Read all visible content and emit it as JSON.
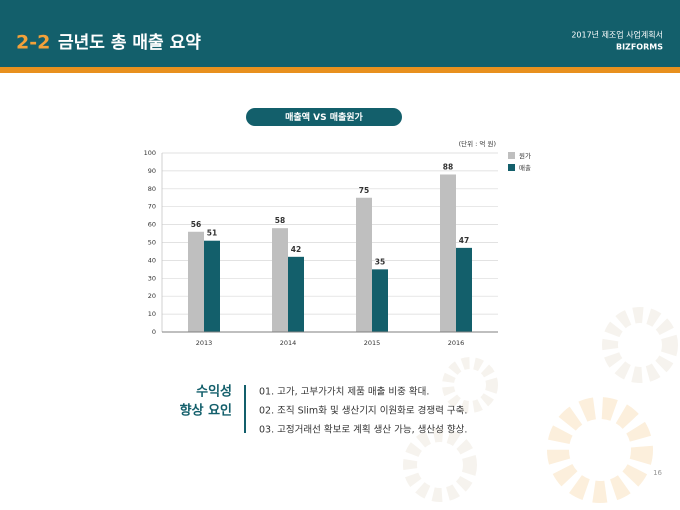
{
  "header": {
    "number": "2-2",
    "title": "금년도 총 매출 요약",
    "doc_title": "2017년 제조업 사업계획서",
    "brand": "BIZFORMS"
  },
  "chart_data": {
    "type": "bar",
    "title": "매출액 VS 매출원가",
    "unit": "(단위 : 억 원)",
    "categories": [
      "2013",
      "2014",
      "2015",
      "2016"
    ],
    "series": [
      {
        "name": "원가",
        "color": "#bfbfbf",
        "values": [
          56,
          58,
          75,
          88
        ]
      },
      {
        "name": "매출",
        "color": "#135f6b",
        "values": [
          51,
          42,
          35,
          47
        ]
      }
    ],
    "ylim": [
      0,
      100
    ],
    "yticks": [
      0,
      10,
      20,
      30,
      40,
      50,
      60,
      70,
      80,
      90,
      100
    ],
    "grid": true,
    "legend": "right"
  },
  "summary": {
    "heading": [
      "수익성",
      "향상 요인"
    ],
    "items": [
      "01. 고가, 고부가가치 제품 매출 비중 확대.",
      "02. 조직 Slim화 및 생산기지 이원화로 경쟁력 구축.",
      "03. 고정거래선 확보로 계획 생산 가능, 생산성 향상."
    ]
  },
  "page_number": "16"
}
